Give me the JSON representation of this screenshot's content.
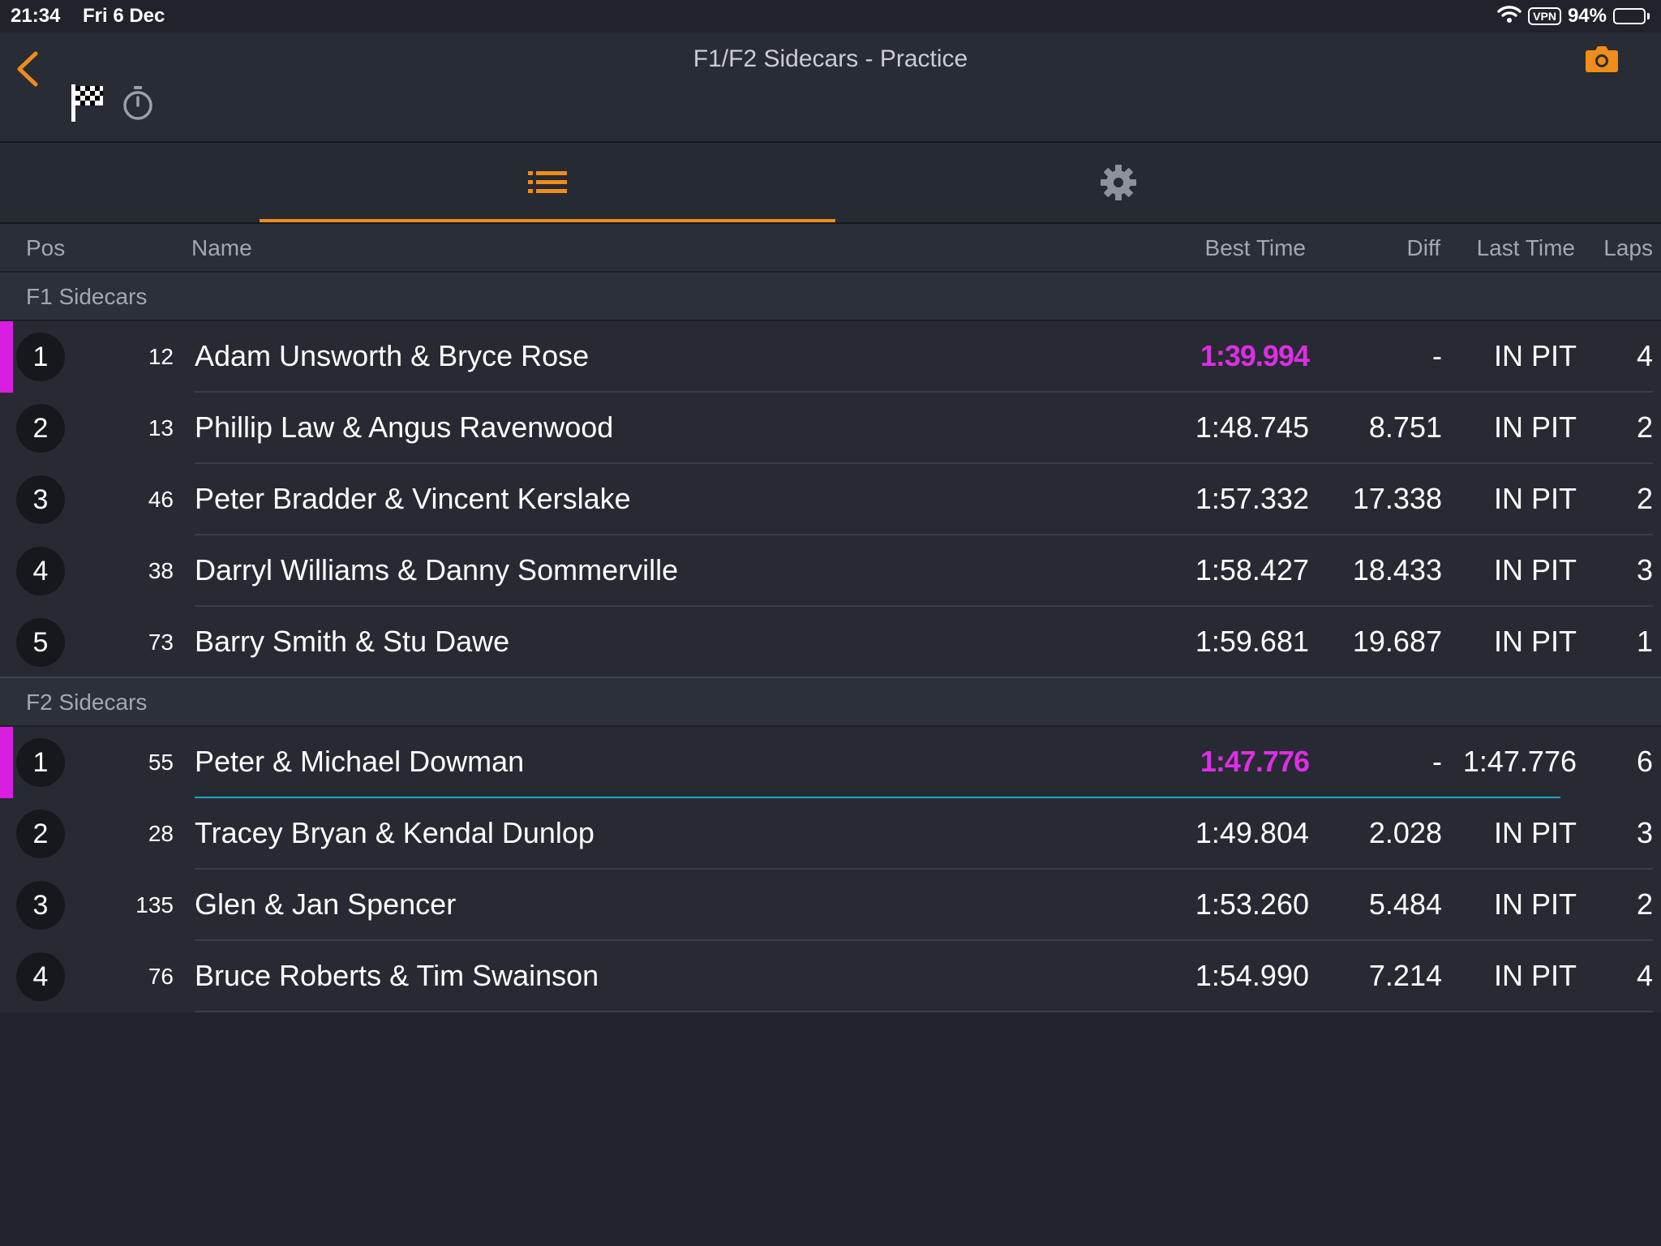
{
  "status_bar": {
    "time": "21:34",
    "date": "Fri 6 Dec",
    "vpn": "VPN",
    "battery": "94%",
    "battery_level": 0.94
  },
  "nav": {
    "title": "F1/F2 Sidecars - Practice"
  },
  "colors": {
    "accent": "#f08c1a",
    "fastest": "#dd2ee3",
    "live_line": "#1ba9c4",
    "background": "#20232b"
  },
  "columns": {
    "pos": "Pos",
    "name": "Name",
    "best_time": "Best Time",
    "diff": "Diff",
    "last_time": "Last Time",
    "laps": "Laps"
  },
  "groups": [
    {
      "label": "F1 Sidecars",
      "rows": [
        {
          "pos": "1",
          "num": "12",
          "name": "Adam Unsworth & Bryce Rose",
          "best": "1:39.994",
          "diff": "-",
          "last": "IN PIT",
          "laps": "4"
        },
        {
          "pos": "2",
          "num": "13",
          "name": "Phillip Law & Angus Ravenwood",
          "best": "1:48.745",
          "diff": "8.751",
          "last": "IN PIT",
          "laps": "2"
        },
        {
          "pos": "3",
          "num": "46",
          "name": "Peter Bradder & Vincent Kerslake",
          "best": "1:57.332",
          "diff": "17.338",
          "last": "IN PIT",
          "laps": "2"
        },
        {
          "pos": "4",
          "num": "38",
          "name": "Darryl Williams & Danny Sommerville",
          "best": "1:58.427",
          "diff": "18.433",
          "last": "IN PIT",
          "laps": "3"
        },
        {
          "pos": "5",
          "num": "73",
          "name": "Barry Smith & Stu Dawe",
          "best": "1:59.681",
          "diff": "19.687",
          "last": "IN PIT",
          "laps": "1"
        }
      ]
    },
    {
      "label": "F2 Sidecars",
      "rows": [
        {
          "pos": "1",
          "num": "55",
          "name": "Peter & Michael Dowman",
          "best": "1:47.776",
          "diff": "-",
          "last": "1:47.776",
          "laps": "6"
        },
        {
          "pos": "2",
          "num": "28",
          "name": "Tracey Bryan & Kendal Dunlop",
          "best": "1:49.804",
          "diff": "2.028",
          "last": "IN PIT",
          "laps": "3"
        },
        {
          "pos": "3",
          "num": "135",
          "name": "Glen & Jan Spencer",
          "best": "1:53.260",
          "diff": "5.484",
          "last": "IN PIT",
          "laps": "2"
        },
        {
          "pos": "4",
          "num": "76",
          "name": "Bruce Roberts & Tim Swainson",
          "best": "1:54.990",
          "diff": "7.214",
          "last": "IN PIT",
          "laps": "4"
        }
      ]
    }
  ]
}
